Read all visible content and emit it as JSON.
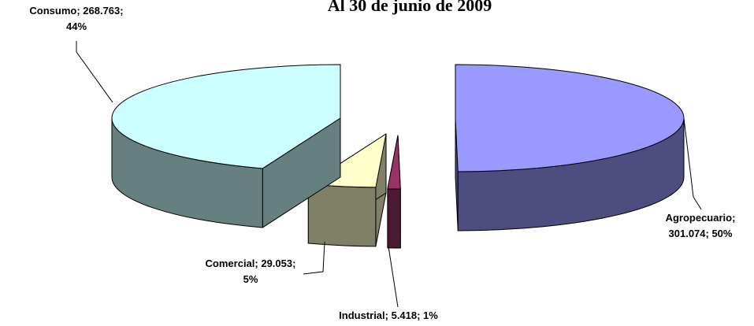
{
  "chart_data": {
    "type": "pie3d",
    "title": "Al 30 de junio de 2009",
    "categories": [
      "Agropecuario",
      "Industrial",
      "Comercial",
      "Consumo"
    ],
    "values": [
      301.074,
      5.418,
      29.053,
      268.763
    ],
    "value_labels": [
      [
        "Agropecuario;",
        "301.074; 50%"
      ],
      [
        "Industrial; 5.418; 1%"
      ],
      [
        "Comercial; 29.053;",
        "5%"
      ],
      [
        "Consumo; 268.763;",
        "44%"
      ]
    ],
    "colors": [
      "#9999ff",
      "#993366",
      "#ffffcc",
      "#ccffff"
    ],
    "side_colors": [
      "#4d4d80",
      "#4d1a33",
      "#808066",
      "#668080"
    ]
  }
}
